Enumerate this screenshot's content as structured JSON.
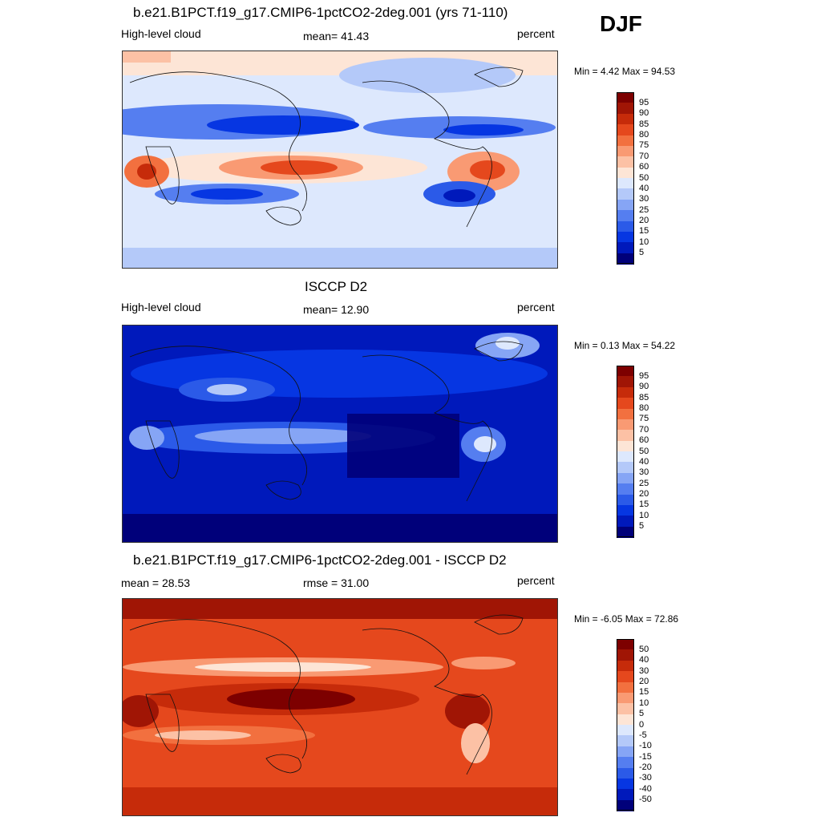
{
  "season": "DJF",
  "colors": {
    "cbar_abs": [
      "#00007a",
      "#0019bb",
      "#0636e2",
      "#2b5ae8",
      "#557ef0",
      "#86a5f5",
      "#b4c9f9",
      "#dde8fd",
      "#fde5d6",
      "#fcc1a5",
      "#f99a73",
      "#f2703f",
      "#e5481d",
      "#c62b0a",
      "#a01505",
      "#7d0000"
    ],
    "cbar_diff": [
      "#00007a",
      "#0019bb",
      "#0636e2",
      "#2b5ae8",
      "#557ef0",
      "#86a5f5",
      "#b4c9f9",
      "#dde8fd",
      "#fde5d6",
      "#fcc1a5",
      "#f99a73",
      "#f2703f",
      "#e5481d",
      "#c62b0a",
      "#a01505",
      "#7d0000"
    ]
  },
  "panels": [
    {
      "title": "b.e21.B1PCT.f19_g17.CMIP6-1pctCO2-2deg.001 (yrs 71-110)",
      "left_label": "High-level cloud",
      "center_label": "mean=  41.43",
      "right_label": "percent",
      "minmax": "Min =   4.42 Max =  94.53",
      "colorbar_ticks": [
        "95",
        "90",
        "85",
        "80",
        "75",
        "70",
        "60",
        "50",
        "40",
        "30",
        "25",
        "20",
        "15",
        "10",
        "5"
      ]
    },
    {
      "title": "ISCCP D2",
      "left_label": "High-level cloud",
      "center_label": "mean=  12.90",
      "right_label": "percent",
      "minmax": "Min =   0.13 Max =  54.22",
      "colorbar_ticks": [
        "95",
        "90",
        "85",
        "80",
        "75",
        "70",
        "60",
        "50",
        "40",
        "30",
        "25",
        "20",
        "15",
        "10",
        "5"
      ]
    },
    {
      "title": "b.e21.B1PCT.f19_g17.CMIP6-1pctCO2-2deg.001 - ISCCP D2",
      "left_label": "mean =  28.53",
      "center_label": "rmse =  31.00",
      "right_label": "percent",
      "minmax": "Min =  -6.05 Max =  72.86",
      "colorbar_ticks": [
        "50",
        "40",
        "30",
        "20",
        "15",
        "10",
        "5",
        "0",
        "-5",
        "-10",
        "-15",
        "-20",
        "-30",
        "-40",
        "-50"
      ]
    }
  ]
}
